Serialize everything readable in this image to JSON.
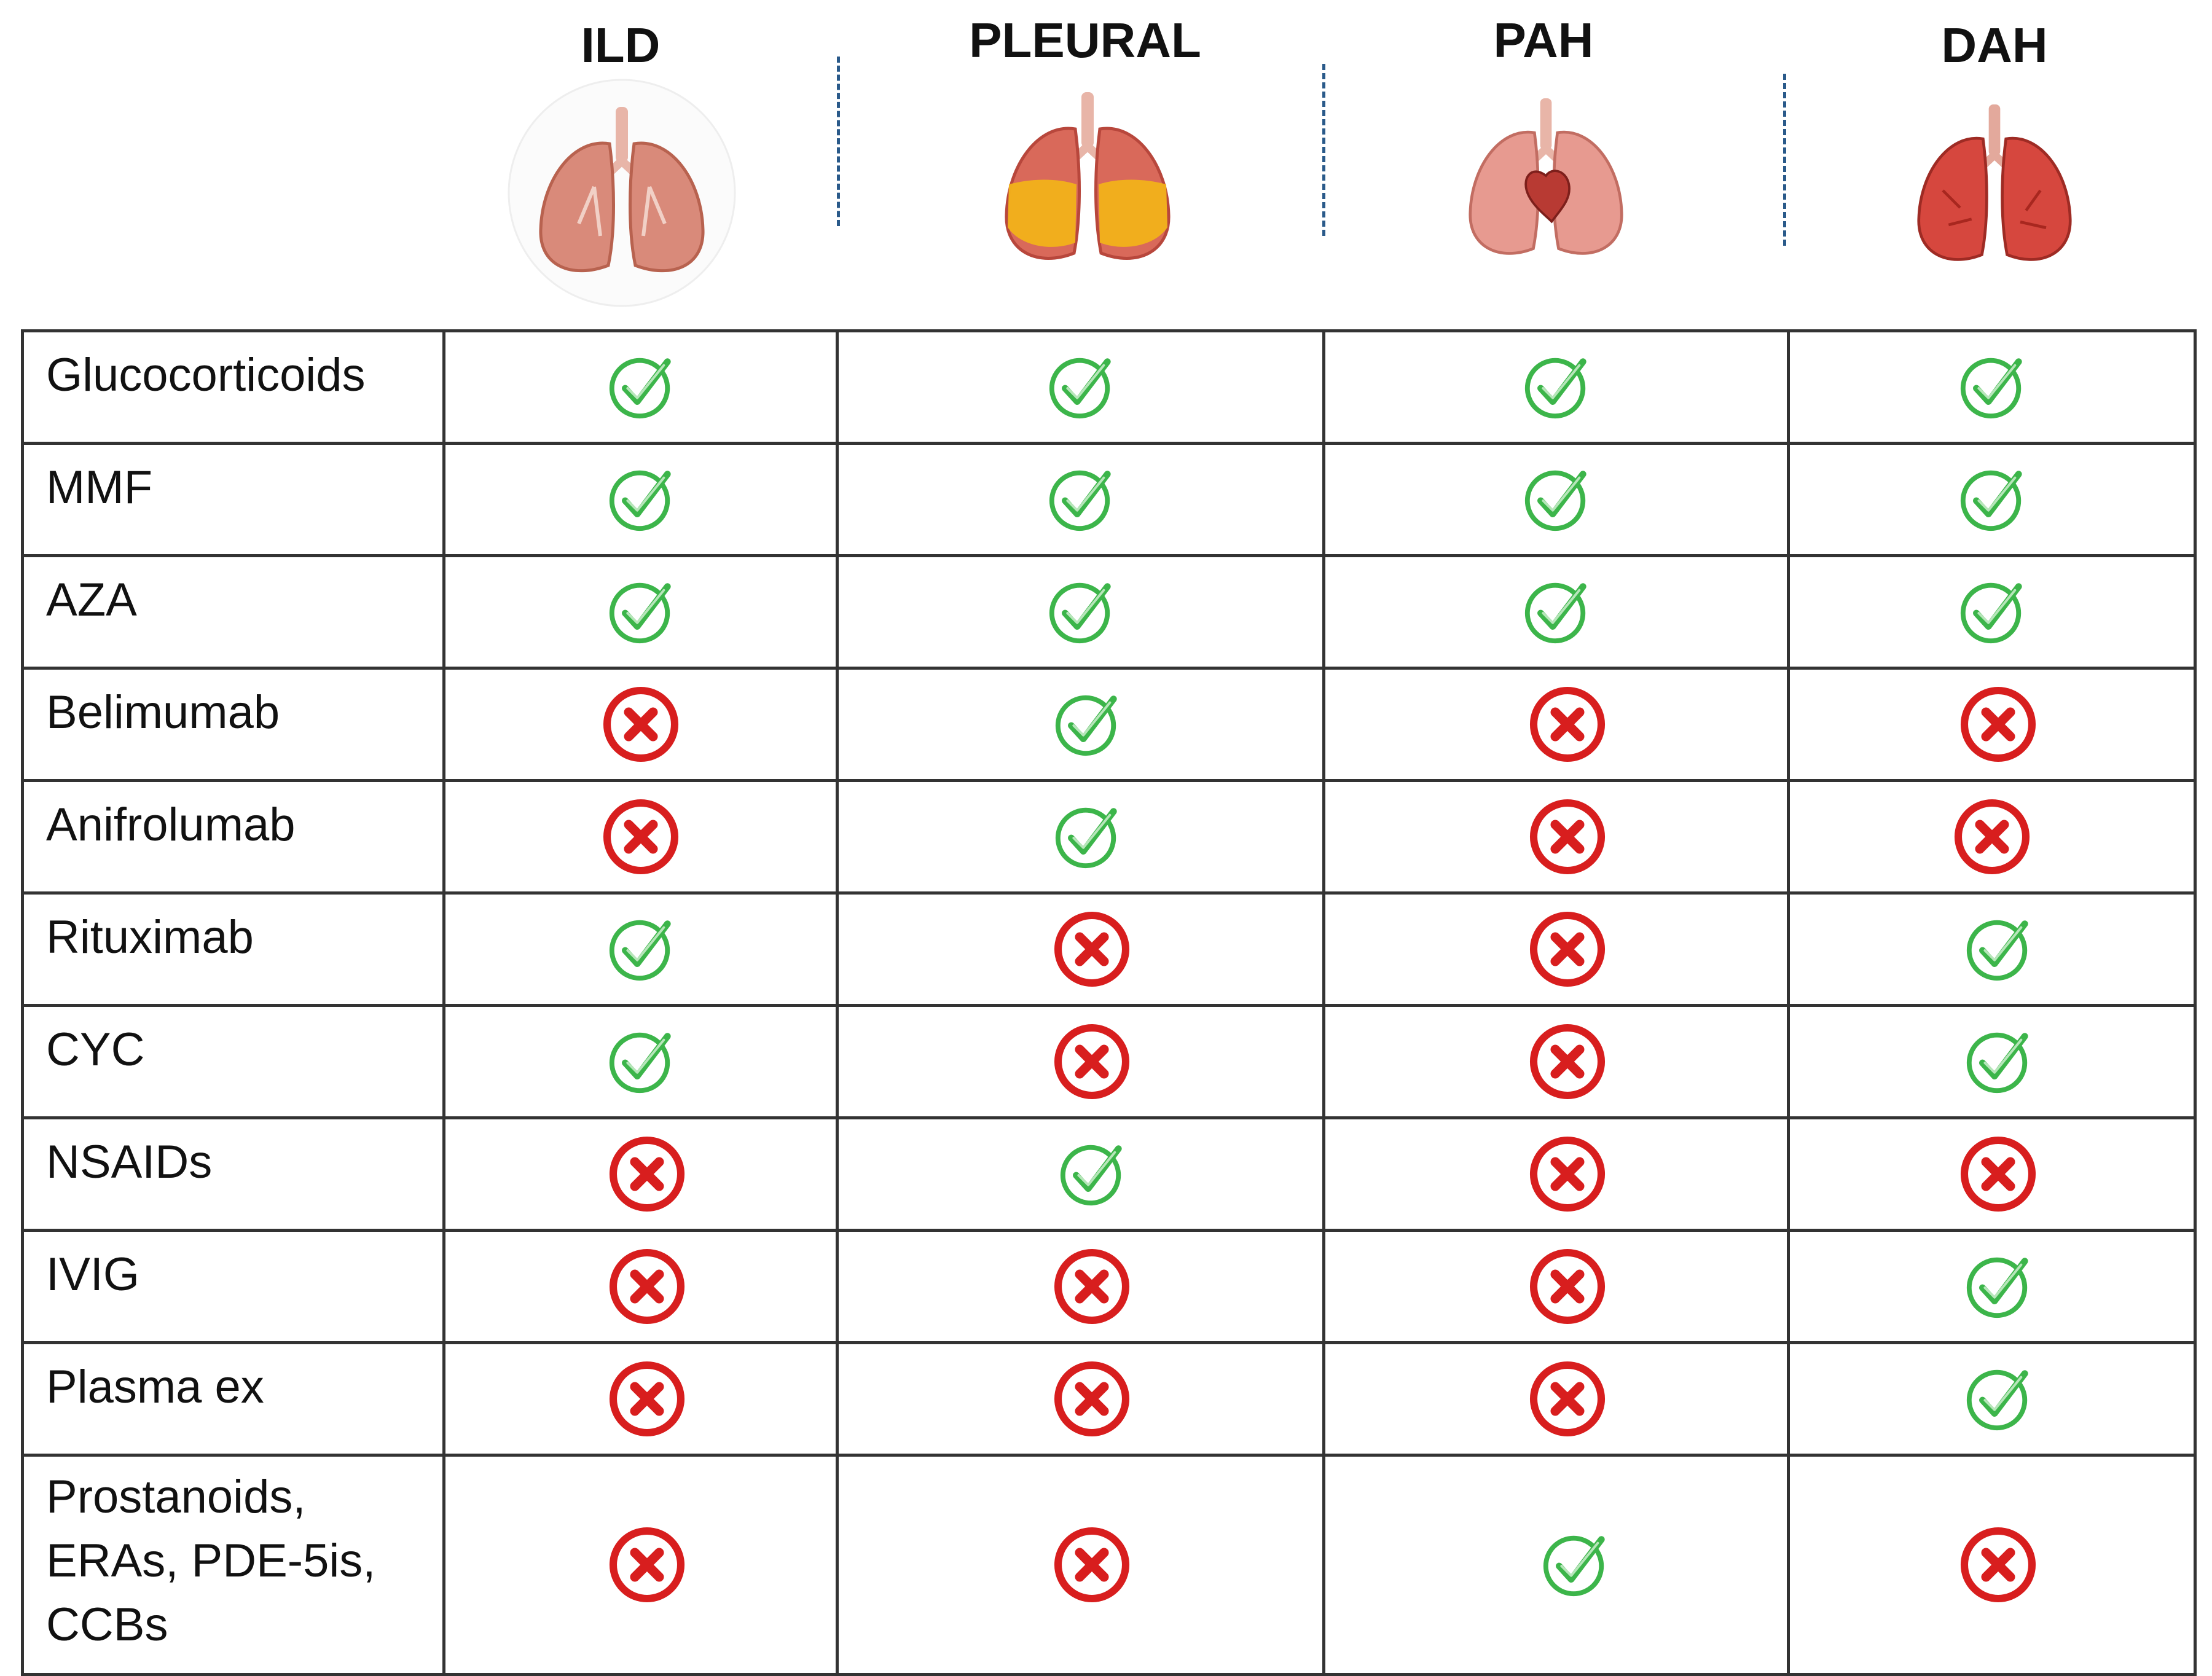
{
  "columns": [
    {
      "key": "ild",
      "label": "ILD"
    },
    {
      "key": "pleural",
      "label": "PLEURAL"
    },
    {
      "key": "pah",
      "label": "PAH"
    },
    {
      "key": "dah",
      "label": "DAH"
    }
  ],
  "rows": [
    {
      "label": "Glucocorticoids",
      "values": [
        "yes",
        "yes",
        "yes",
        "yes"
      ]
    },
    {
      "label": "MMF",
      "values": [
        "yes",
        "yes",
        "yes",
        "yes"
      ]
    },
    {
      "label": "AZA",
      "values": [
        "yes",
        "yes",
        "yes",
        "yes"
      ]
    },
    {
      "label": "Belimumab",
      "values": [
        "no",
        "yes",
        "no",
        "no"
      ]
    },
    {
      "label": "Anifrolumab",
      "values": [
        "no",
        "yes",
        "no",
        "no"
      ]
    },
    {
      "label": "Rituximab",
      "values": [
        "yes",
        "no",
        "no",
        "yes"
      ]
    },
    {
      "label": "CYC",
      "values": [
        "yes",
        "no",
        "no",
        "yes"
      ]
    },
    {
      "label": "NSAIDs",
      "values": [
        "no",
        "yes",
        "no",
        "no"
      ]
    },
    {
      "label": "IVIG",
      "values": [
        "no",
        "no",
        "no",
        "yes"
      ]
    },
    {
      "label": "Plasma ex",
      "values": [
        "no",
        "no",
        "no",
        "yes"
      ]
    },
    {
      "label": "Prostanoids,\nERAs, PDE-5is,\nCCBs",
      "values": [
        "no",
        "no",
        "yes",
        "no"
      ]
    }
  ],
  "icons": {
    "yes": "check-circle-icon",
    "no": "x-circle-icon",
    "column_image": "lungs-icon"
  },
  "colors": {
    "check": "#3cb54a",
    "cross": "#d81e1e",
    "lung_ild": "#d98a7a",
    "lung_pleural": "#f2b21a",
    "lung_pah": "#e79a90",
    "lung_dah": "#d6473e"
  }
}
